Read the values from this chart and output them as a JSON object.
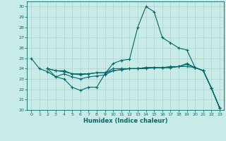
{
  "xlabel": "Humidex (Indice chaleur)",
  "ylabel": "",
  "xlim": [
    -0.5,
    23.5
  ],
  "ylim": [
    20,
    30.5
  ],
  "yticks": [
    20,
    21,
    22,
    23,
    24,
    25,
    26,
    27,
    28,
    29,
    30
  ],
  "xticks": [
    0,
    1,
    2,
    3,
    4,
    5,
    6,
    7,
    8,
    9,
    10,
    11,
    12,
    13,
    14,
    15,
    16,
    17,
    18,
    19,
    20,
    21,
    22,
    23
  ],
  "background_color": "#c8ebe8",
  "grid_color": "#aad4d0",
  "line_color": "#006868",
  "lines": [
    {
      "x": [
        0,
        1,
        2,
        3,
        4,
        5,
        6,
        7,
        8,
        9,
        10,
        11,
        12,
        13,
        14,
        15,
        16,
        17,
        18,
        19,
        20,
        21,
        22,
        23
      ],
      "y": [
        25,
        24,
        23.7,
        23.2,
        23.0,
        22.2,
        21.9,
        22.2,
        22.2,
        23.5,
        24.5,
        24.8,
        24.9,
        28.0,
        30.0,
        29.5,
        27.0,
        26.5,
        26.0,
        25.8,
        24.1,
        23.8,
        22.1,
        20.2
      ]
    },
    {
      "x": [
        2,
        3,
        4,
        5,
        6,
        7,
        8,
        9,
        10,
        11,
        12,
        13,
        14,
        15,
        16,
        17,
        18,
        19,
        20,
        21,
        22,
        23
      ],
      "y": [
        24.0,
        23.8,
        23.8,
        23.5,
        23.4,
        23.5,
        23.6,
        23.6,
        24.0,
        24.0,
        24.0,
        24.0,
        24.1,
        24.1,
        24.1,
        24.1,
        24.2,
        24.2,
        24.1,
        23.8,
        22.1,
        20.2
      ]
    },
    {
      "x": [
        2,
        3,
        4,
        5,
        6,
        7,
        8,
        9,
        10,
        11,
        12,
        13,
        14,
        15,
        16,
        17,
        18,
        19,
        20,
        21,
        22,
        23
      ],
      "y": [
        24.0,
        23.2,
        23.5,
        23.2,
        23.0,
        23.2,
        23.3,
        23.4,
        23.8,
        23.9,
        24.0,
        24.0,
        24.0,
        24.1,
        24.1,
        24.1,
        24.2,
        24.5,
        24.1,
        23.8,
        22.1,
        20.2
      ]
    },
    {
      "x": [
        2,
        3,
        4,
        5,
        6,
        7,
        8,
        9,
        10,
        11,
        12,
        13,
        14,
        15,
        16,
        17,
        18,
        19,
        20,
        21,
        22,
        23
      ],
      "y": [
        24.0,
        23.8,
        23.7,
        23.5,
        23.5,
        23.5,
        23.6,
        23.6,
        23.8,
        23.9,
        24.0,
        24.0,
        24.1,
        24.1,
        24.1,
        24.2,
        24.2,
        24.4,
        24.1,
        23.8,
        22.1,
        20.2
      ]
    }
  ]
}
